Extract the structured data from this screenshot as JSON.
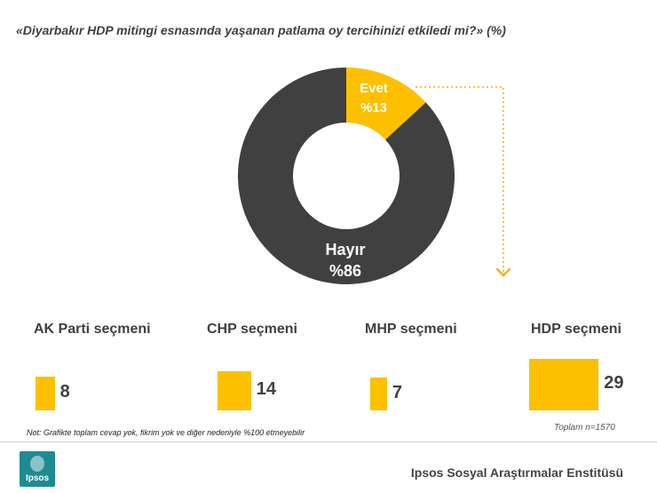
{
  "title": "«Diyarbakır HDP mitingi esnasında yaşanan patlama oy tercihinizi etkiledi mi?» (%)",
  "chart_data": [
    {
      "type": "pie",
      "slices": [
        {
          "label": "Evet",
          "value": 13,
          "value_label": "%13",
          "color": "#fcc000"
        },
        {
          "label": "Hayır",
          "value": 86,
          "value_label": "%86",
          "color": "#404040"
        }
      ]
    },
    {
      "type": "bar",
      "categories": [
        "AK Parti seçmeni",
        "CHP seçmeni",
        "MHP seçmeni",
        "HDP seçmeni"
      ],
      "values": [
        8,
        14,
        7,
        29
      ],
      "color": "#fcc000"
    }
  ],
  "total_note": "Toplam n=1570",
  "footnote": "Not: Grafikte toplam cevap yok, fikrim yok ve diğer nedeniyle %100 etmeyebilir",
  "footer": {
    "logo_text": "Ipsos",
    "organization": "Ipsos Sosyal Araştırmalar Enstitüsü"
  }
}
